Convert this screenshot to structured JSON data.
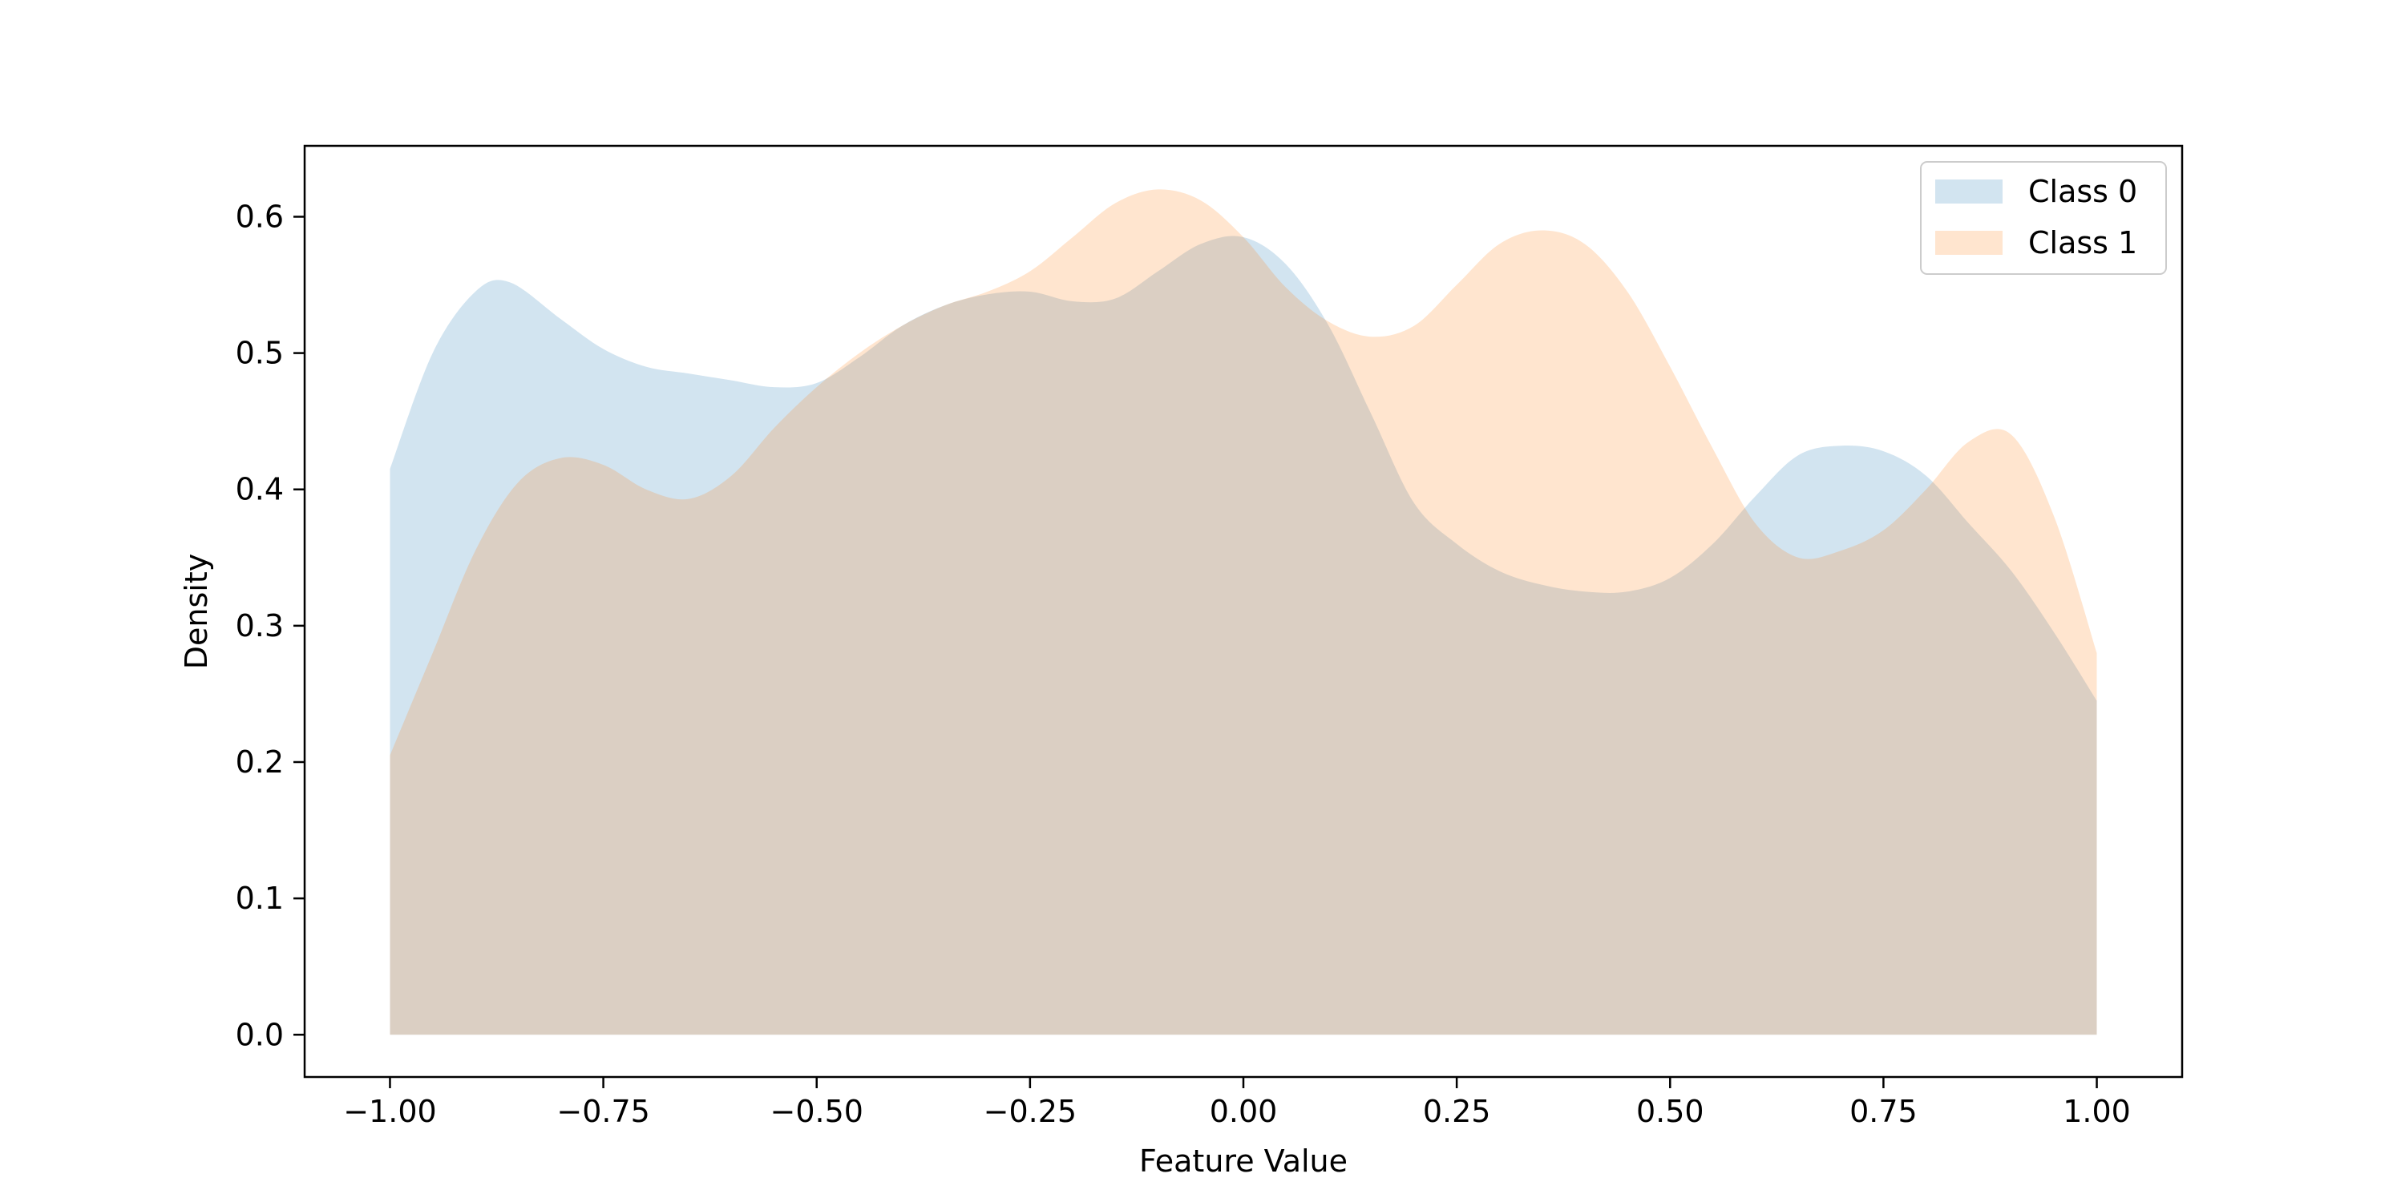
{
  "chart_data": {
    "type": "area",
    "title": "",
    "xlabel": "Feature Value",
    "ylabel": "Density",
    "xlim": [
      -1.1,
      1.1
    ],
    "ylim": [
      -0.031,
      0.652
    ],
    "x_ticks": [
      -1.0,
      -0.75,
      -0.5,
      -0.25,
      0.0,
      0.25,
      0.5,
      0.75,
      1.0
    ],
    "x_tick_labels": [
      "−1.00",
      "−0.75",
      "−0.50",
      "−0.25",
      "0.00",
      "0.25",
      "0.50",
      "0.75",
      "1.00"
    ],
    "y_ticks": [
      0.0,
      0.1,
      0.2,
      0.3,
      0.4,
      0.5,
      0.6
    ],
    "y_tick_labels": [
      "0.0",
      "0.1",
      "0.2",
      "0.3",
      "0.4",
      "0.5",
      "0.6"
    ],
    "grid": false,
    "legend_position": "top-right",
    "series": [
      {
        "name": "Class 0",
        "color": "#1f77b4",
        "opacity": 0.2,
        "x": [
          -1.0,
          -0.95,
          -0.9,
          -0.86,
          -0.8,
          -0.75,
          -0.7,
          -0.65,
          -0.6,
          -0.55,
          -0.5,
          -0.45,
          -0.4,
          -0.35,
          -0.3,
          -0.25,
          -0.2,
          -0.15,
          -0.1,
          -0.05,
          0.0,
          0.05,
          0.1,
          0.15,
          0.2,
          0.25,
          0.3,
          0.35,
          0.4,
          0.45,
          0.5,
          0.55,
          0.6,
          0.65,
          0.7,
          0.75,
          0.8,
          0.85,
          0.9,
          0.95,
          1.0
        ],
        "y": [
          0.415,
          0.5,
          0.545,
          0.552,
          0.525,
          0.503,
          0.49,
          0.485,
          0.48,
          0.475,
          0.478,
          0.497,
          0.52,
          0.535,
          0.543,
          0.545,
          0.538,
          0.54,
          0.56,
          0.58,
          0.585,
          0.565,
          0.52,
          0.455,
          0.39,
          0.36,
          0.34,
          0.33,
          0.325,
          0.325,
          0.335,
          0.36,
          0.395,
          0.425,
          0.432,
          0.428,
          0.41,
          0.375,
          0.34,
          0.295,
          0.245
        ]
      },
      {
        "name": "Class 1",
        "color": "#ff7f0e",
        "opacity": 0.2,
        "x": [
          -1.0,
          -0.95,
          -0.9,
          -0.85,
          -0.8,
          -0.75,
          -0.7,
          -0.65,
          -0.6,
          -0.55,
          -0.5,
          -0.45,
          -0.4,
          -0.35,
          -0.3,
          -0.25,
          -0.2,
          -0.15,
          -0.1,
          -0.05,
          0.0,
          0.05,
          0.1,
          0.15,
          0.2,
          0.25,
          0.3,
          0.35,
          0.4,
          0.45,
          0.5,
          0.55,
          0.6,
          0.65,
          0.7,
          0.75,
          0.8,
          0.85,
          0.9,
          0.95,
          1.0
        ],
        "y": [
          0.205,
          0.28,
          0.355,
          0.405,
          0.423,
          0.418,
          0.4,
          0.393,
          0.41,
          0.445,
          0.475,
          0.5,
          0.52,
          0.535,
          0.545,
          0.56,
          0.585,
          0.61,
          0.62,
          0.612,
          0.585,
          0.548,
          0.523,
          0.512,
          0.52,
          0.55,
          0.58,
          0.59,
          0.58,
          0.545,
          0.49,
          0.43,
          0.375,
          0.35,
          0.355,
          0.37,
          0.4,
          0.435,
          0.44,
          0.38,
          0.28
        ]
      }
    ]
  }
}
